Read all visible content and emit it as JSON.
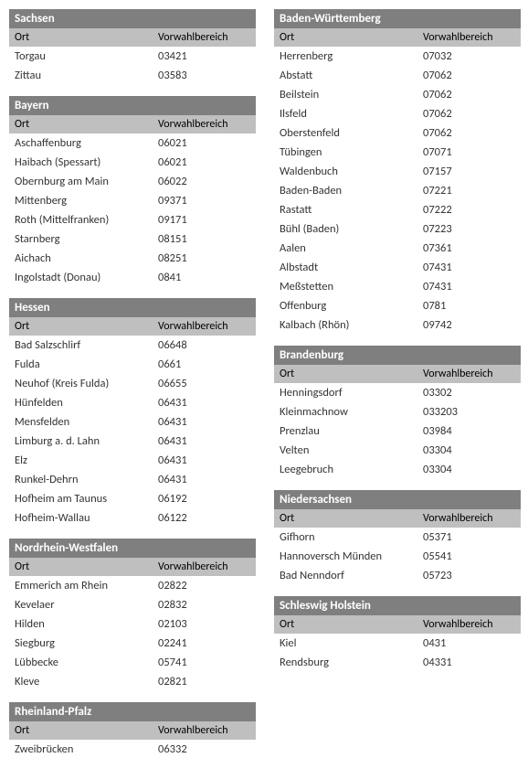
{
  "headers": {
    "ort": "Ort",
    "vorwahl": "Vorwahlbereich"
  },
  "left": [
    {
      "title": "Sachsen",
      "rows": [
        {
          "ort": "Torgau",
          "vor": "03421"
        },
        {
          "ort": "Zittau",
          "vor": "03583"
        }
      ]
    },
    {
      "title": "Bayern",
      "rows": [
        {
          "ort": "Aschaffenburg",
          "vor": "06021"
        },
        {
          "ort": "Haibach (Spessart)",
          "vor": "06021"
        },
        {
          "ort": "Obernburg am Main",
          "vor": "06022"
        },
        {
          "ort": "Mittenberg",
          "vor": "09371"
        },
        {
          "ort": "Roth (Mittelfranken)",
          "vor": "09171"
        },
        {
          "ort": "Starnberg",
          "vor": "08151"
        },
        {
          "ort": "Aichach",
          "vor": "08251"
        },
        {
          "ort": "Ingolstadt (Donau)",
          "vor": "0841"
        }
      ]
    },
    {
      "title": "Hessen",
      "rows": [
        {
          "ort": "Bad Salzschlirf",
          "vor": "06648"
        },
        {
          "ort": "Fulda",
          "vor": "0661"
        },
        {
          "ort": "Neuhof (Kreis Fulda)",
          "vor": "06655"
        },
        {
          "ort": "Hünfelden",
          "vor": "06431"
        },
        {
          "ort": "Mensfelden",
          "vor": "06431"
        },
        {
          "ort": "Limburg a. d. Lahn",
          "vor": "06431"
        },
        {
          "ort": "Elz",
          "vor": "06431"
        },
        {
          "ort": "Runkel-Dehrn",
          "vor": "06431"
        },
        {
          "ort": "Hofheim am Taunus",
          "vor": "06192"
        },
        {
          "ort": "Hofheim-Wallau",
          "vor": "06122"
        }
      ]
    },
    {
      "title": "Nordrhein-Westfalen",
      "rows": [
        {
          "ort": "Emmerich am Rhein",
          "vor": "02822"
        },
        {
          "ort": "Kevelaer",
          "vor": "02832"
        },
        {
          "ort": "Hilden",
          "vor": "02103"
        },
        {
          "ort": "Siegburg",
          "vor": "02241"
        },
        {
          "ort": "Lübbecke",
          "vor": "05741"
        },
        {
          "ort": "Kleve",
          "vor": "02821"
        }
      ]
    },
    {
      "title": "Rheinland-Pfalz",
      "rows": [
        {
          "ort": "Zweibrücken",
          "vor": "06332"
        }
      ]
    }
  ],
  "right": [
    {
      "title": "Baden-Württemberg",
      "rows": [
        {
          "ort": "Herrenberg",
          "vor": "07032"
        },
        {
          "ort": "Abstatt",
          "vor": "07062"
        },
        {
          "ort": "Beilstein",
          "vor": "07062"
        },
        {
          "ort": "Ilsfeld",
          "vor": "07062"
        },
        {
          "ort": "Oberstenfeld",
          "vor": "07062"
        },
        {
          "ort": "Tübingen",
          "vor": "07071"
        },
        {
          "ort": "Waldenbuch",
          "vor": "07157"
        },
        {
          "ort": "Baden-Baden",
          "vor": "07221"
        },
        {
          "ort": "Rastatt",
          "vor": "07222"
        },
        {
          "ort": "Bühl (Baden)",
          "vor": "07223"
        },
        {
          "ort": "Aalen",
          "vor": "07361"
        },
        {
          "ort": "Albstadt",
          "vor": "07431"
        },
        {
          "ort": "Meßstetten",
          "vor": "07431"
        },
        {
          "ort": "Offenburg",
          "vor": "0781"
        },
        {
          "ort": "Kalbach (Rhön)",
          "vor": "09742"
        }
      ]
    },
    {
      "title": "Brandenburg",
      "rows": [
        {
          "ort": "Henningsdorf",
          "vor": "03302"
        },
        {
          "ort": "Kleinmachnow",
          "vor": "033203"
        },
        {
          "ort": "Prenzlau",
          "vor": "03984"
        },
        {
          "ort": "Velten",
          "vor": "03304"
        },
        {
          "ort": "Leegebruch",
          "vor": "03304"
        }
      ]
    },
    {
      "title": "Niedersachsen",
      "rows": [
        {
          "ort": "Gifhorn",
          "vor": "05371"
        },
        {
          "ort": "Hannoversch Münden",
          "vor": "05541"
        },
        {
          "ort": "Bad Nenndorf",
          "vor": "05723"
        }
      ]
    },
    {
      "title": "Schleswig Holstein",
      "rows": [
        {
          "ort": "Kiel",
          "vor": "0431"
        },
        {
          "ort": "Rendsburg",
          "vor": "04331"
        }
      ]
    }
  ]
}
